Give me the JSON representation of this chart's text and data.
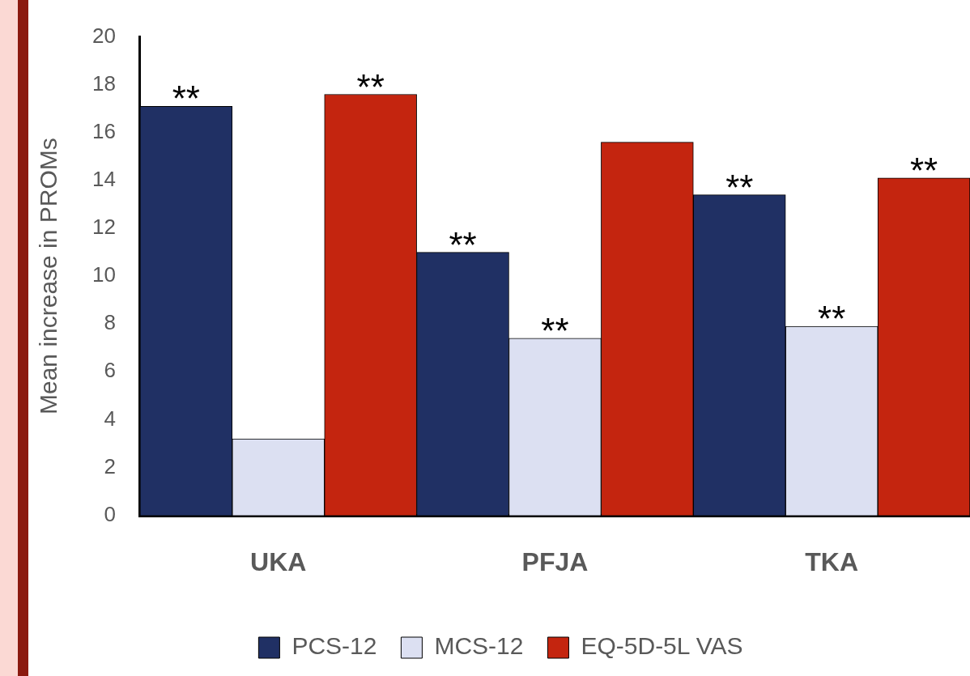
{
  "chart_data": {
    "type": "bar",
    "ylabel": "Mean increase in PROMs",
    "categories": [
      "UKA",
      "PFJA",
      "TKA"
    ],
    "series": [
      {
        "name": "PCS-12",
        "color": "#203064",
        "values": [
          17.1,
          11.0,
          13.4
        ],
        "value_labels": [
          "**",
          "**",
          "**"
        ]
      },
      {
        "name": "MCS-12",
        "color": "#dce0f2",
        "values": [
          3.2,
          7.4,
          7.9
        ],
        "value_labels": [
          null,
          "**",
          "**"
        ]
      },
      {
        "name": "EQ-5D-5L VAS",
        "color": "#c4250f",
        "values": [
          17.6,
          15.6,
          14.1
        ],
        "value_labels": [
          "**",
          null,
          "**"
        ]
      }
    ],
    "ylim": [
      0,
      20
    ],
    "yticks": [
      0,
      2,
      4,
      6,
      8,
      10,
      12,
      14,
      16,
      18,
      20
    ],
    "grid": false,
    "legend": "bottom"
  }
}
